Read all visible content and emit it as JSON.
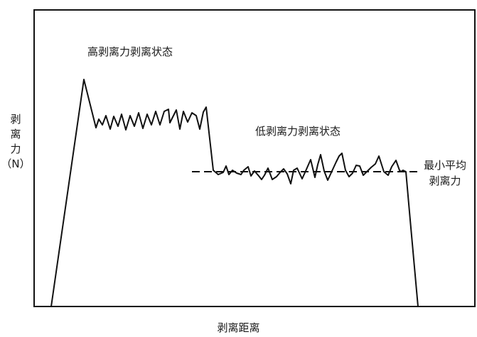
{
  "labels": {
    "y_axis": [
      "剥",
      "离",
      "力",
      "（N）"
    ],
    "x_axis": "剥离距离",
    "high_state": "高剥离力剥离状态",
    "low_state": "低剥离力剥离状态",
    "min_avg": [
      "最小平均",
      "剥离力"
    ]
  },
  "colors": {
    "line": "#111111",
    "background": "#ffffff"
  }
}
